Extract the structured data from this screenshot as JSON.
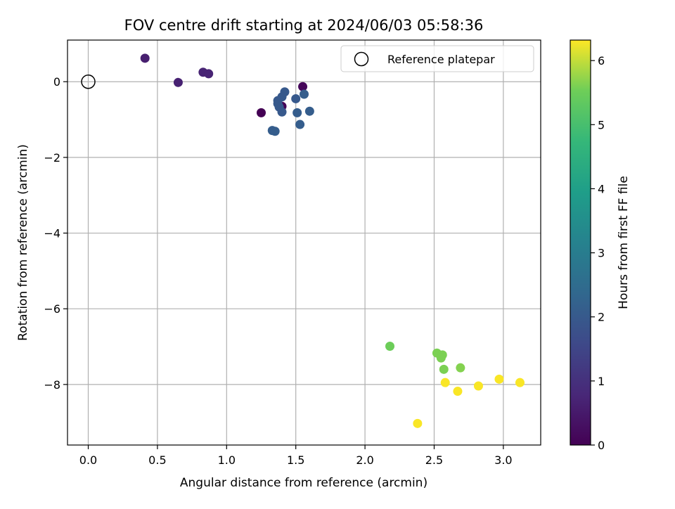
{
  "chart_data": {
    "type": "scatter",
    "title": "FOV centre drift starting at 2024/06/03 05:58:36",
    "xlabel": "Angular distance from reference (arcmin)",
    "ylabel": "Rotation from reference (arcmin)",
    "colorbar_label": "Hours from first FF file",
    "xlim": [
      -0.15,
      3.27
    ],
    "ylim": [
      -9.6,
      1.1
    ],
    "clim": [
      0,
      6.32
    ],
    "x_ticks": [
      0.0,
      0.5,
      1.0,
      1.5,
      2.0,
      2.5,
      3.0
    ],
    "x_tick_labels": [
      "0.0",
      "0.5",
      "1.0",
      "1.5",
      "2.0",
      "2.5",
      "3.0"
    ],
    "y_ticks": [
      0,
      -2,
      -4,
      -6,
      -8
    ],
    "y_tick_labels": [
      "0",
      "−2",
      "−4",
      "−6",
      "−8"
    ],
    "cbar_ticks": [
      0,
      1,
      2,
      3,
      4,
      5,
      6
    ],
    "cbar_tick_labels": [
      "0",
      "1",
      "2",
      "3",
      "4",
      "5",
      "6"
    ],
    "grid": true,
    "legend": {
      "position": "top-right",
      "entries": [
        "Reference platepar"
      ]
    },
    "reference": {
      "name": "Reference platepar",
      "x": 0.0,
      "y": 0.0,
      "marker": "open-circle"
    },
    "colormap": "viridis",
    "points": [
      {
        "x": 1.25,
        "y": -0.82,
        "hours": 0.0
      },
      {
        "x": 1.4,
        "y": -0.65,
        "hours": 0.05
      },
      {
        "x": 1.55,
        "y": -0.13,
        "hours": 0.1
      },
      {
        "x": 0.41,
        "y": 0.62,
        "hours": 0.6
      },
      {
        "x": 0.65,
        "y": -0.02,
        "hours": 0.65
      },
      {
        "x": 0.83,
        "y": 0.25,
        "hours": 0.7
      },
      {
        "x": 0.87,
        "y": 0.21,
        "hours": 0.7
      },
      {
        "x": 1.37,
        "y": -0.58,
        "hours": 2.0
      },
      {
        "x": 1.4,
        "y": -0.8,
        "hours": 2.0
      },
      {
        "x": 1.42,
        "y": -0.27,
        "hours": 2.0
      },
      {
        "x": 1.4,
        "y": -0.4,
        "hours": 2.0
      },
      {
        "x": 1.37,
        "y": -0.5,
        "hours": 2.0
      },
      {
        "x": 1.38,
        "y": -0.67,
        "hours": 2.0
      },
      {
        "x": 1.5,
        "y": -0.45,
        "hours": 2.0
      },
      {
        "x": 1.56,
        "y": -0.33,
        "hours": 2.1
      },
      {
        "x": 1.51,
        "y": -0.82,
        "hours": 2.1
      },
      {
        "x": 1.6,
        "y": -0.78,
        "hours": 2.1
      },
      {
        "x": 1.53,
        "y": -1.13,
        "hours": 2.1
      },
      {
        "x": 1.33,
        "y": -1.29,
        "hours": 2.1
      },
      {
        "x": 1.35,
        "y": -1.31,
        "hours": 2.1
      },
      {
        "x": 2.18,
        "y": -6.99,
        "hours": 5.5
      },
      {
        "x": 2.52,
        "y": -7.17,
        "hours": 5.6
      },
      {
        "x": 2.56,
        "y": -7.22,
        "hours": 5.6
      },
      {
        "x": 2.55,
        "y": -7.3,
        "hours": 5.6
      },
      {
        "x": 2.57,
        "y": -7.6,
        "hours": 5.6
      },
      {
        "x": 2.69,
        "y": -7.56,
        "hours": 5.65
      },
      {
        "x": 2.58,
        "y": -7.95,
        "hours": 6.3
      },
      {
        "x": 2.67,
        "y": -8.18,
        "hours": 6.3
      },
      {
        "x": 2.82,
        "y": -8.04,
        "hours": 6.3
      },
      {
        "x": 2.97,
        "y": -7.86,
        "hours": 6.3
      },
      {
        "x": 3.12,
        "y": -7.95,
        "hours": 6.3
      },
      {
        "x": 2.38,
        "y": -9.03,
        "hours": 6.3
      }
    ]
  }
}
